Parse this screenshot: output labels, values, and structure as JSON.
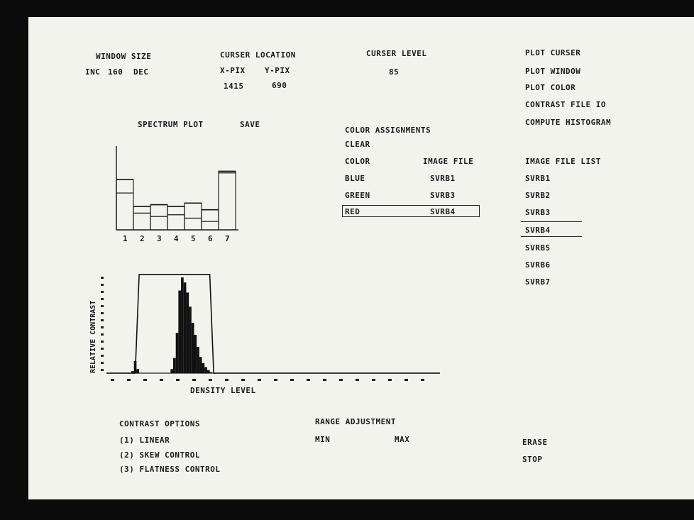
{
  "window_size": {
    "label": "WINDOW SIZE",
    "inc": "INC",
    "value": "160",
    "dec": "DEC"
  },
  "cursor_location": {
    "label": "CURSER LOCATION",
    "x_label": "X-PIX",
    "y_label": "Y-PIX",
    "x_value": "1415",
    "y_value": "690"
  },
  "cursor_level": {
    "label": "CURSER LEVEL",
    "value": "85"
  },
  "plot_menu": [
    "PLOT CURSER",
    "PLOT WINDOW",
    "PLOT COLOR",
    "CONTRAST FILE IO",
    "COMPUTE HISTOGRAM"
  ],
  "spectrum": {
    "title": "SPECTRUM PLOT",
    "save": "SAVE"
  },
  "color_assignments": {
    "title": "COLOR ASSIGNMENTS",
    "clear": "CLEAR",
    "col_color": "COLOR",
    "col_file": "IMAGE FILE",
    "rows": [
      {
        "color": "BLUE",
        "file": "SVRB1"
      },
      {
        "color": "GREEN",
        "file": "SVRB3"
      },
      {
        "color": "RED",
        "file": "SVRB4"
      }
    ]
  },
  "image_file_list": {
    "title": "IMAGE FILE LIST",
    "items": [
      "SVRB1",
      "SVRB2",
      "SVRB3",
      "SVRB4",
      "SVRB5",
      "SVRB6",
      "SVRB7"
    ],
    "selected": "SVRB4"
  },
  "histogram": {
    "ylabel": "RELATIVE CONTRAST",
    "xlabel": "DENSITY LEVEL"
  },
  "contrast_options": {
    "title": "CONTRAST OPTIONS",
    "items": [
      "(1) LINEAR",
      "(2) SKEW CONTROL",
      "(3) FLATNESS CONTROL"
    ]
  },
  "range_adjustment": {
    "title": "RANGE ADJUSTMENT",
    "min": "MIN",
    "max": "MAX"
  },
  "actions": {
    "erase": "ERASE",
    "stop": "STOP"
  },
  "chart_data": [
    {
      "type": "bar",
      "title": "SPECTRUM PLOT",
      "categories": [
        "1",
        "2",
        "3",
        "4",
        "5",
        "6",
        "7"
      ],
      "series": [
        {
          "values": [
            60,
            28,
            30,
            28,
            32,
            24,
            70
          ]
        },
        {
          "values": [
            44,
            20,
            16,
            18,
            14,
            10,
            68
          ]
        }
      ],
      "ylim": [
        0,
        100
      ]
    },
    {
      "type": "area",
      "xlabel": "DENSITY LEVEL",
      "ylabel": "RELATIVE CONTRAST",
      "xlim": [
        0,
        255
      ],
      "ylim": [
        0,
        1
      ],
      "histogram": {
        "x": [
          20,
          22,
          24,
          26,
          50,
          52,
          54,
          56,
          58,
          60,
          62,
          64,
          66,
          68,
          70,
          72,
          74,
          76,
          78,
          80,
          82
        ],
        "y": [
          0.02,
          0.12,
          0.04,
          0.0,
          0.04,
          0.15,
          0.4,
          0.82,
          0.95,
          0.9,
          0.8,
          0.66,
          0.5,
          0.38,
          0.26,
          0.16,
          0.1,
          0.06,
          0.03,
          0.01,
          0.0
        ]
      },
      "contrast_curve": {
        "x": [
          0,
          22,
          25,
          79,
          82,
          255
        ],
        "y": [
          0,
          0,
          0.98,
          0.98,
          0,
          0
        ]
      }
    }
  ]
}
